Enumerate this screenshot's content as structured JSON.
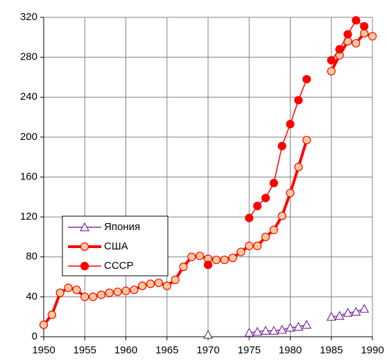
{
  "chart_data": {
    "type": "line",
    "x": [
      1950,
      1951,
      1952,
      1953,
      1954,
      1955,
      1956,
      1957,
      1958,
      1959,
      1960,
      1961,
      1962,
      1963,
      1964,
      1965,
      1966,
      1967,
      1968,
      1969,
      1970,
      1971,
      1972,
      1973,
      1974,
      1975,
      1976,
      1977,
      1978,
      1979,
      1980,
      1981,
      1982,
      1983,
      1984,
      1985,
      1986,
      1987,
      1988,
      1989,
      1990
    ],
    "series": [
      {
        "name": "Япония",
        "color": "#7b2c9e",
        "marker": "triangle-open",
        "line_width": 1.5,
        "values": [
          null,
          null,
          null,
          null,
          null,
          null,
          null,
          null,
          null,
          null,
          null,
          null,
          null,
          null,
          null,
          null,
          null,
          null,
          null,
          null,
          2,
          null,
          null,
          null,
          null,
          4,
          5,
          6,
          6,
          7,
          9,
          10,
          12,
          null,
          null,
          20,
          21,
          24,
          25,
          28,
          null
        ]
      },
      {
        "name": "США",
        "color": "#ff0000",
        "marker": "circle-open",
        "marker_fill": "#ffcc99",
        "line_width": 4,
        "values": [
          12,
          22,
          44,
          49,
          47,
          40,
          40,
          42,
          44,
          45,
          46,
          47,
          51,
          53,
          54,
          51,
          57,
          70,
          80,
          81,
          78,
          77,
          77,
          79,
          85,
          91,
          91,
          100,
          107,
          121,
          144,
          170,
          197,
          null,
          null,
          266,
          282,
          296,
          294,
          304,
          301
        ]
      },
      {
        "name": "СССР",
        "color": "#ff0000",
        "marker": "circle",
        "line_width": 1.5,
        "values": [
          null,
          null,
          null,
          null,
          null,
          null,
          null,
          null,
          null,
          null,
          null,
          null,
          null,
          null,
          null,
          null,
          null,
          null,
          null,
          null,
          72,
          null,
          null,
          null,
          null,
          119,
          131,
          139,
          154,
          191,
          213,
          237,
          258,
          null,
          null,
          277,
          288,
          303,
          317,
          311,
          null
        ]
      }
    ],
    "xlim": [
      1950,
      1990
    ],
    "ylim": [
      0,
      320
    ],
    "xticks": [
      1950,
      1955,
      1960,
      1965,
      1970,
      1975,
      1980,
      1985,
      1990
    ],
    "yticks": [
      0,
      40,
      80,
      120,
      160,
      200,
      240,
      280,
      320
    ],
    "grid": true
  }
}
